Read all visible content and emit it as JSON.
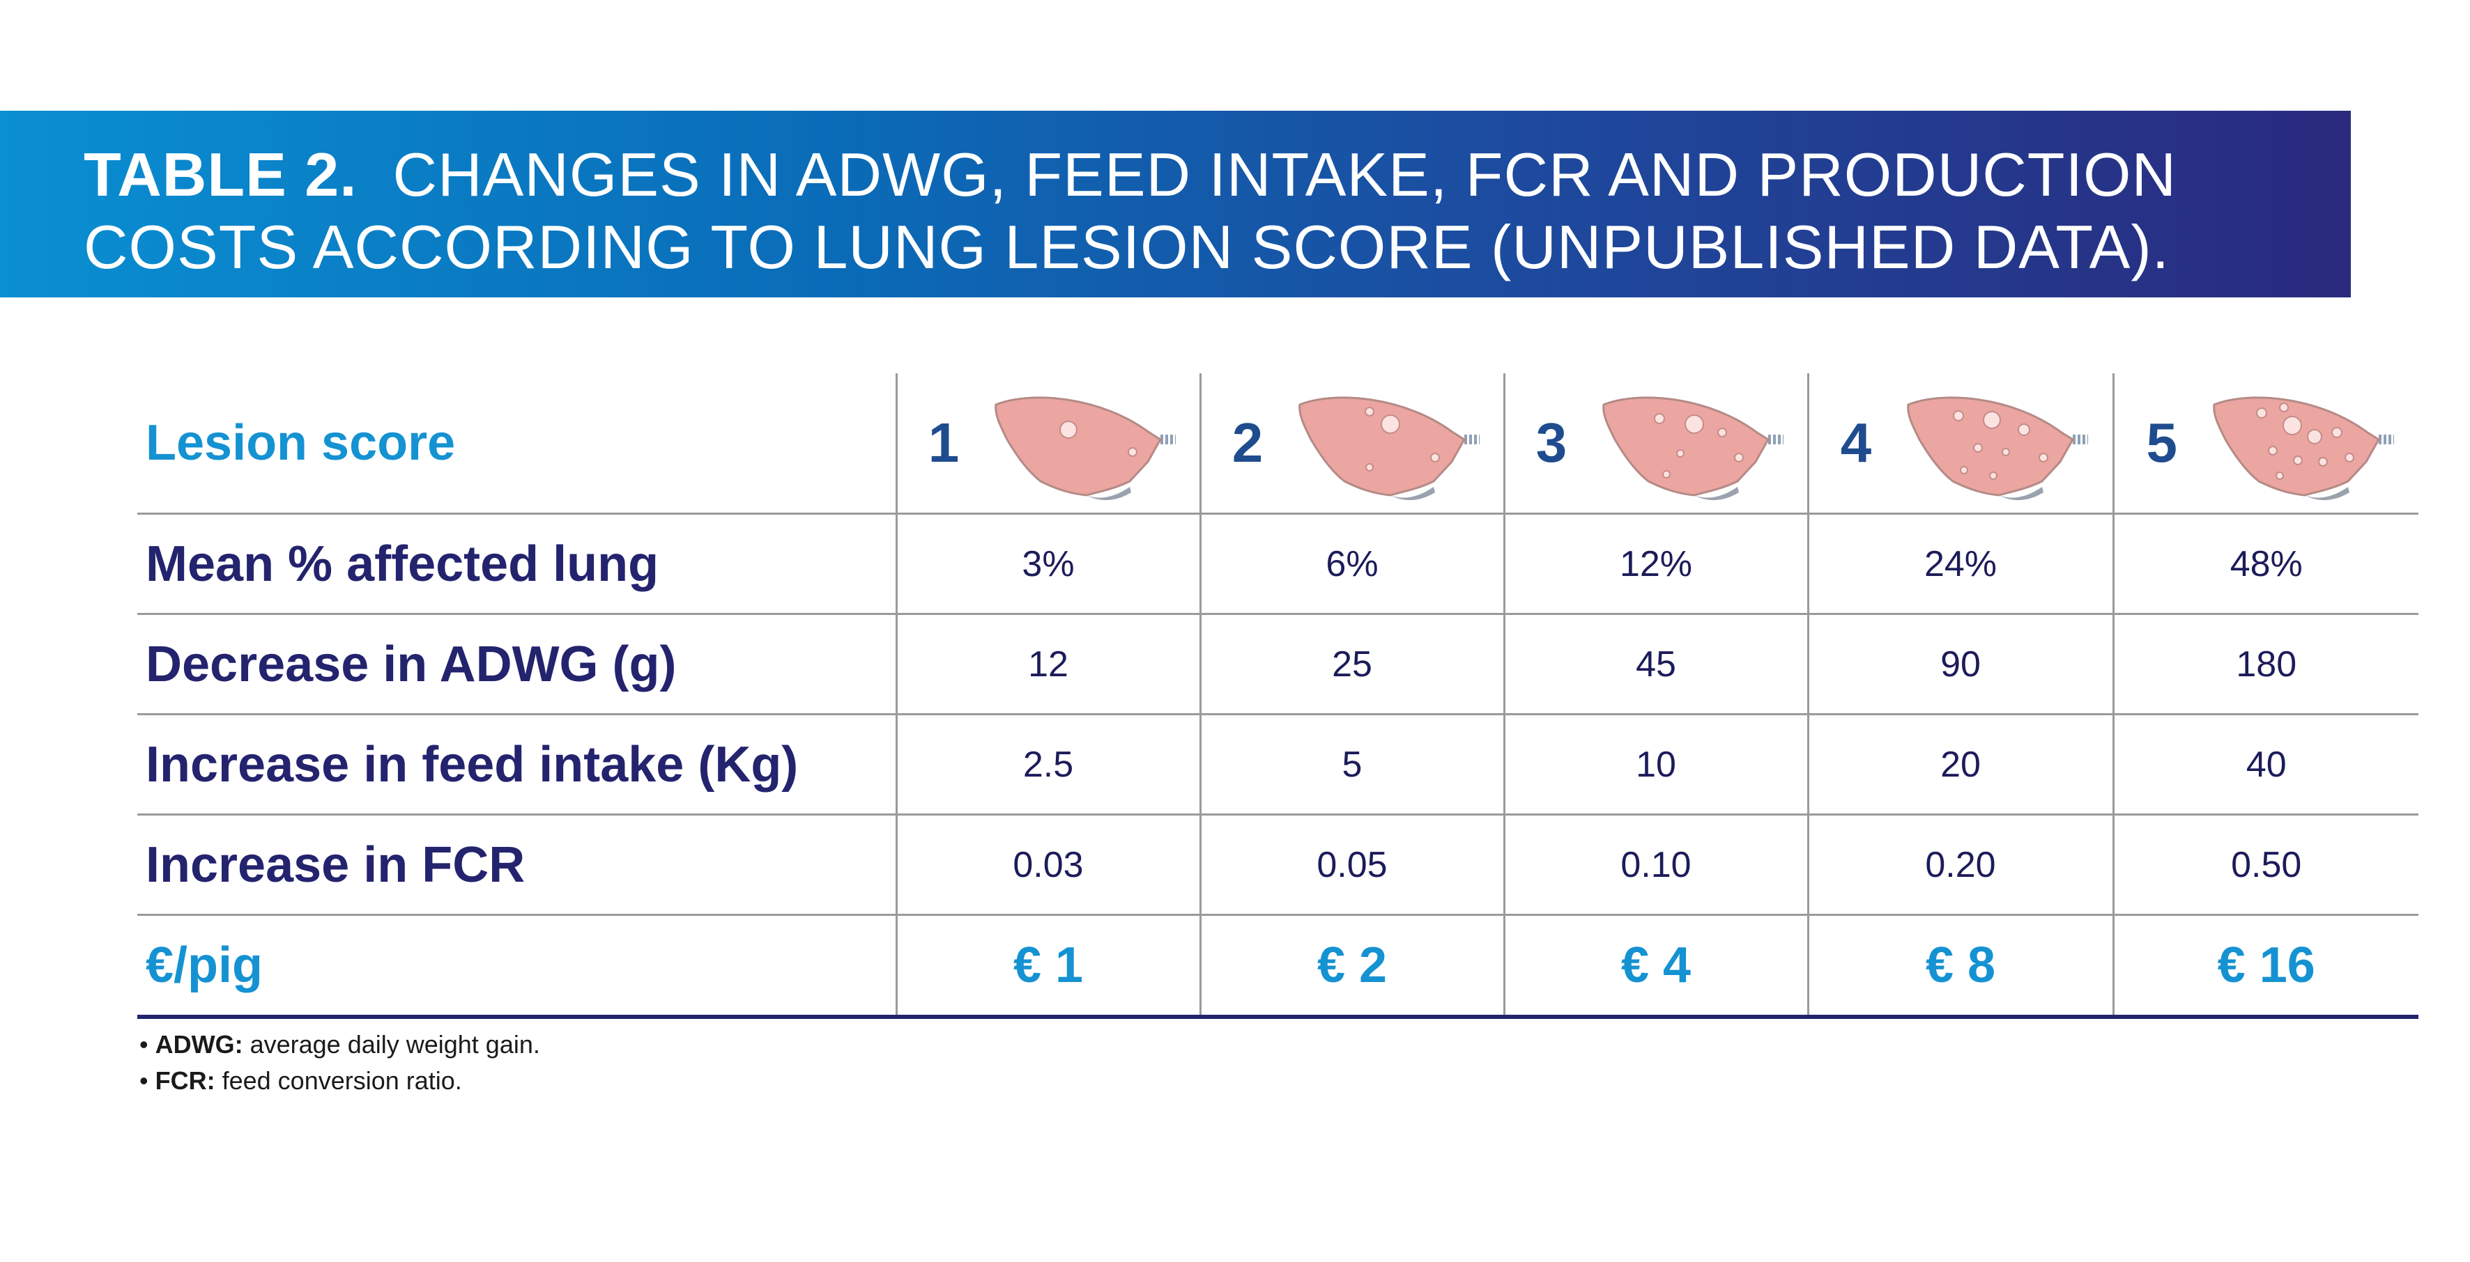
{
  "title": {
    "lead": "TABLE 2.",
    "text": "CHANGES IN ADWG, FEED INTAKE, FCR AND PRODUCTION COSTS ACCORDING TO LUNG LESION SCORE (UNPUBLISHED DATA)."
  },
  "table": {
    "header_label": "Lesion score",
    "scores": [
      "1",
      "2",
      "3",
      "4",
      "5"
    ],
    "rows": [
      {
        "label": "Mean % affected lung",
        "values": [
          "3%",
          "6%",
          "12%",
          "24%",
          "48%"
        ]
      },
      {
        "label": "Decrease in ADWG (g)",
        "values": [
          "12",
          "25",
          "45",
          "90",
          "180"
        ]
      },
      {
        "label": "Increase in feed intake (Kg)",
        "values": [
          "2.5",
          "5",
          "10",
          "20",
          "40"
        ]
      },
      {
        "label": "Increase in FCR",
        "values": [
          "0.03",
          "0.05",
          "0.10",
          "0.20",
          "0.50"
        ]
      }
    ],
    "price_row": {
      "label": "€/pig",
      "values": [
        "€ 1",
        "€ 2",
        "€ 4",
        "€ 8",
        "€ 16"
      ]
    }
  },
  "notes": [
    {
      "term": "ADWG:",
      "text": "average daily weight gain."
    },
    {
      "term": "FCR:",
      "text": "feed conversion ratio."
    }
  ],
  "icons": [
    "lung-lesion-icon"
  ],
  "colors": {
    "banner_start": "#0a8fd2",
    "banner_end": "#2a2a7e",
    "label_navy": "#23236e",
    "accent_blue": "#1592d2",
    "lung_pink": "#eba6a2"
  }
}
